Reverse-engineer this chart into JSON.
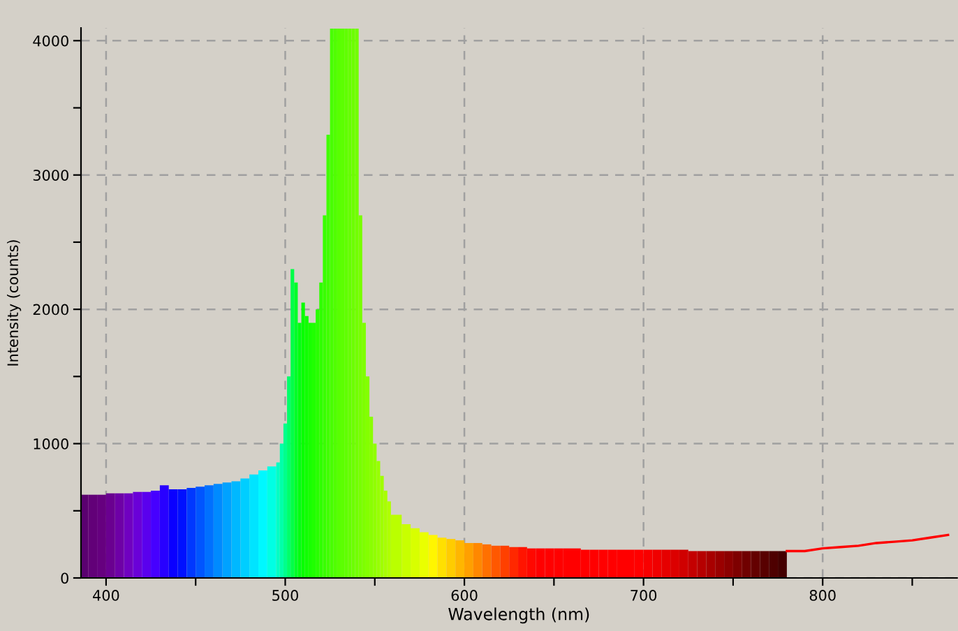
{
  "chart_data": {
    "type": "histogram",
    "xlabel": "Wavelength (nm)",
    "ylabel": "Intensity (counts)",
    "xlim": [
      386,
      875
    ],
    "ylim": [
      0,
      4095
    ],
    "xticks": [
      400,
      {
        "value": 450,
        "label": null
      },
      500,
      {
        "value": 550,
        "label": null
      },
      600,
      {
        "value": 650,
        "label": null
      },
      700,
      {
        "value": 750,
        "label": null
      },
      800,
      {
        "value": 850,
        "label": null
      }
    ],
    "yticks": [
      0,
      {
        "value": 500,
        "label": null
      },
      1000,
      {
        "value": 1500,
        "label": null
      },
      2000,
      {
        "value": 2500,
        "label": null
      },
      3000,
      {
        "value": 3500,
        "label": null
      },
      4000
    ],
    "grid": true,
    "series": [
      {
        "bins": [
          386,
          390,
          395,
          400,
          405,
          410,
          415,
          420,
          425,
          430,
          435,
          440,
          445,
          450,
          455,
          460,
          465,
          470,
          475,
          480,
          485,
          490,
          495,
          497,
          499,
          501,
          503,
          505,
          507,
          509,
          511,
          513,
          515,
          517,
          519,
          521,
          523,
          525,
          527,
          529,
          531,
          533,
          535,
          537,
          539,
          541,
          543,
          545,
          547,
          549,
          551,
          553,
          555,
          557,
          559,
          565,
          570,
          575,
          580,
          585,
          590,
          595,
          600,
          605,
          610,
          615,
          620,
          625,
          630,
          635,
          640,
          645,
          650,
          655,
          660,
          665,
          670,
          675,
          680,
          685,
          690,
          695,
          700,
          705,
          710,
          715,
          720,
          725,
          730,
          735,
          740,
          745,
          750,
          755,
          760,
          765,
          770,
          775,
          780
        ],
        "values": [
          620,
          620,
          620,
          630,
          630,
          630,
          640,
          640,
          650,
          690,
          660,
          660,
          670,
          680,
          690,
          700,
          710,
          720,
          740,
          770,
          800,
          830,
          860,
          1000,
          1150,
          1500,
          2300,
          2200,
          1900,
          2050,
          1950,
          1900,
          1900,
          2000,
          2200,
          2700,
          3300,
          4090,
          4090,
          4090,
          4090,
          4090,
          4090,
          4090,
          4090,
          2700,
          1900,
          1500,
          1200,
          1000,
          870,
          760,
          650,
          570,
          470,
          400,
          370,
          340,
          320,
          300,
          290,
          280,
          260,
          260,
          250,
          240,
          240,
          230,
          230,
          220,
          220,
          220,
          220,
          220,
          220,
          210,
          210,
          210,
          210,
          210,
          210,
          210,
          210,
          210,
          210,
          210,
          210,
          200,
          200,
          200,
          200,
          200,
          200,
          200,
          200,
          200,
          200,
          200
        ],
        "colors": [
          "#5a0070",
          "#620078",
          "#66007f",
          "#6a0090",
          "#6e00a6",
          "#7000c0",
          "#6a00d8",
          "#5a00ee",
          "#4600ff",
          "#2800ff",
          "#0a00ff",
          "#0010ff",
          "#0038ff",
          "#0055ff",
          "#0070ff",
          "#008aff",
          "#00a2ff",
          "#00b8ff",
          "#00ceff",
          "#00e4ff",
          "#00f8ff",
          "#00ffe4",
          "#00ffc4",
          "#00ffaa",
          "#00ff8c",
          "#00ff6a",
          "#00ff48",
          "#00ff28",
          "#00ff10",
          "#08ff00",
          "#10ff00",
          "#18ff00",
          "#20ff00",
          "#28ff00",
          "#30ff00",
          "#38ff00",
          "#40ff00",
          "#48ff00",
          "#50ff00",
          "#58ff00",
          "#5cff00",
          "#60ff00",
          "#66ff00",
          "#6cff00",
          "#72ff00",
          "#78ff00",
          "#7eff00",
          "#84ff00",
          "#8aff00",
          "#90ff00",
          "#98ff00",
          "#a0ff00",
          "#a8ff00",
          "#b0ff00",
          "#baff00",
          "#c8ff00",
          "#d8ff00",
          "#eaff00",
          "#fff600",
          "#ffe000",
          "#ffcc00",
          "#ffb600",
          "#ffa000",
          "#ff8800",
          "#ff7000",
          "#ff5800",
          "#ff4000",
          "#ff2800",
          "#ff1400",
          "#ff0800",
          "#ff0000",
          "#ff0000",
          "#ff0000",
          "#ff0000",
          "#ff0000",
          "#ff0000",
          "#ff0000",
          "#ff0000",
          "#ff0000",
          "#ff0000",
          "#ff0000",
          "#ff0000",
          "#f80000",
          "#f00000",
          "#e60000",
          "#dc0000",
          "#d00000",
          "#c40000",
          "#b60000",
          "#a80000",
          "#9a0000",
          "#8c0000",
          "#7e0000",
          "#700000",
          "#640000",
          "#580000",
          "#4e0000",
          "#440000"
        ]
      },
      {
        "type": "line",
        "color": "#ff0000",
        "x": [
          780,
          790,
          800,
          810,
          820,
          830,
          840,
          850,
          860,
          870
        ],
        "values": [
          200,
          200,
          220,
          230,
          240,
          260,
          270,
          280,
          300,
          320
        ]
      }
    ]
  }
}
